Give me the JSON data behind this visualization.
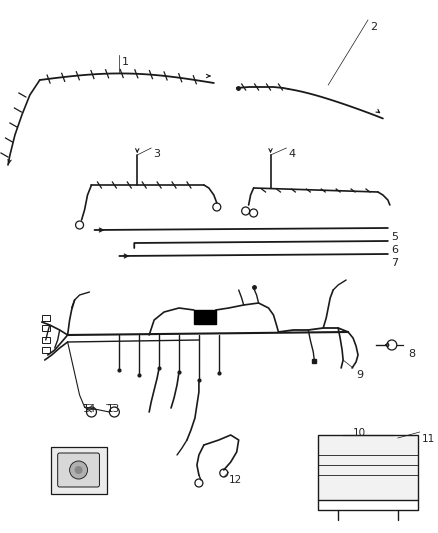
{
  "bg_color": "#ffffff",
  "line_color": "#1a1a1a",
  "label_color": "#222222",
  "fig_width": 4.38,
  "fig_height": 5.33,
  "dpi": 100
}
